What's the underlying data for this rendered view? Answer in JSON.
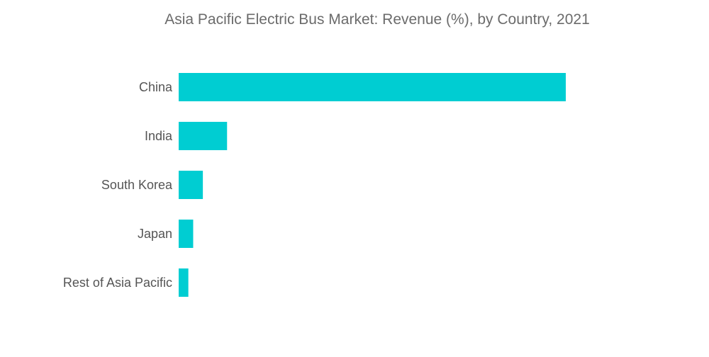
{
  "chart_data": {
    "type": "bar",
    "orientation": "horizontal",
    "title": "Asia Pacific Electric Bus Market: Revenue (%), by Country, 2021",
    "categories": [
      "China",
      "India",
      "South Korea",
      "Japan",
      "Rest of Asia Pacific"
    ],
    "values": [
      80,
      10,
      5,
      3,
      2
    ],
    "xlabel": "",
    "ylabel": "",
    "xlim": [
      0,
      80
    ],
    "grid": false,
    "legend": "none",
    "bar_color": "#00cdd2"
  }
}
